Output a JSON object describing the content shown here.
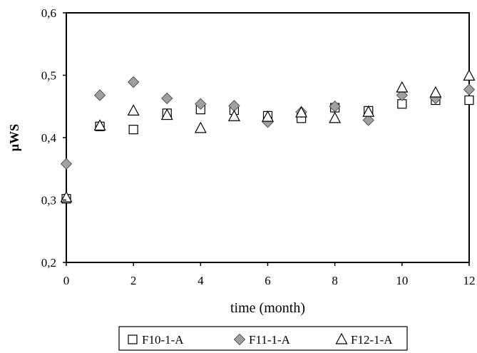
{
  "chart_data": {
    "type": "scatter",
    "xlabel": "time (month)",
    "ylabel": "µWS",
    "xlim": [
      0,
      12
    ],
    "ylim": [
      0.2,
      0.6
    ],
    "x_ticks": [
      0,
      2,
      4,
      6,
      8,
      10,
      12
    ],
    "x_tick_labels": [
      "0",
      "2",
      "4",
      "6",
      "8",
      "10",
      "12"
    ],
    "y_ticks": [
      0.2,
      0.3,
      0.4,
      0.5,
      0.6
    ],
    "y_tick_labels": [
      "0,2",
      "0,3",
      "0,4",
      "0,5",
      "0,6"
    ],
    "grid": true,
    "legend_position": "bottom",
    "series": [
      {
        "name": "F10-1-A",
        "marker": "square-open",
        "color": "#000000",
        "fill": "#ffffff",
        "x": [
          0,
          1,
          2,
          3,
          4,
          5,
          6,
          7,
          8,
          9,
          10,
          11,
          12
        ],
        "y": [
          0.302,
          0.418,
          0.413,
          0.439,
          0.445,
          0.444,
          0.435,
          0.431,
          0.448,
          0.443,
          0.454,
          0.46,
          0.46
        ]
      },
      {
        "name": "F11-1-A",
        "marker": "diamond-filled",
        "color": "#555555",
        "fill": "#a0a0a0",
        "x": [
          0,
          1,
          2,
          3,
          4,
          5,
          6,
          7,
          8,
          9,
          10,
          11,
          12
        ],
        "y": [
          0.358,
          0.468,
          0.489,
          0.463,
          0.454,
          0.451,
          0.425,
          0.441,
          0.45,
          0.428,
          0.468,
          0.463,
          0.477
        ]
      },
      {
        "name": "F12-1-A",
        "marker": "triangle-open",
        "color": "#000000",
        "fill": "#ffffff",
        "x": [
          0,
          1,
          2,
          3,
          4,
          5,
          6,
          7,
          8,
          9,
          10,
          11,
          12
        ],
        "y": [
          0.304,
          0.419,
          0.443,
          0.436,
          0.415,
          0.434,
          0.433,
          0.44,
          0.431,
          0.441,
          0.48,
          0.472,
          0.499
        ]
      }
    ]
  }
}
